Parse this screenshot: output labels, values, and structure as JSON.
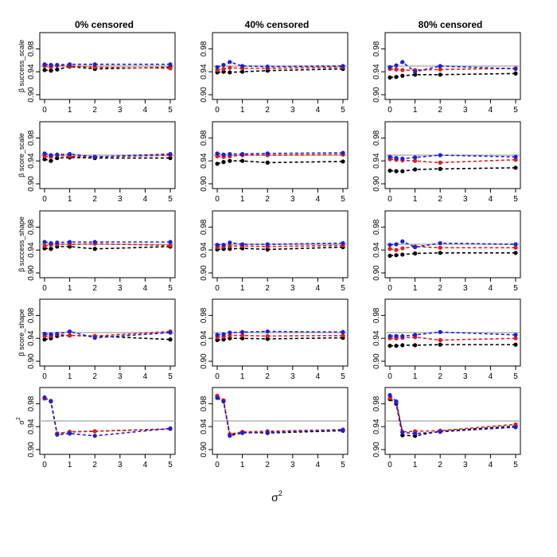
{
  "figure": {
    "column_titles": [
      "0% censored",
      "40% censored",
      "80% censored"
    ],
    "row_labels": [
      {
        "base": "β success_scale",
        "sup": ""
      },
      {
        "base": "β score_scale",
        "sup": ""
      },
      {
        "base": "β success_shape",
        "sup": ""
      },
      {
        "base": "β score_shape",
        "sup": ""
      },
      {
        "base": "σ",
        "sup": "2"
      }
    ],
    "xlabel": {
      "base": "σ",
      "sup": "2"
    }
  },
  "chart_data": {
    "type": "line",
    "x": [
      0,
      0.25,
      0.5,
      1,
      2,
      5
    ],
    "xlim": [
      0,
      5
    ],
    "xticks": [
      "0",
      "1",
      "2",
      "3",
      "4",
      "5"
    ],
    "ylim": [
      0.9,
      1.0
    ],
    "yticks": [
      "0.90",
      "0.94",
      "0.98"
    ],
    "reference_line": 0.95,
    "colors": {
      "black": "#000000",
      "red": "#e41a1c",
      "blue": "#1f1fd6",
      "reference": "#b3b3b3"
    },
    "panels": [
      [
        {
          "black": [
            0.943,
            0.942,
            0.944,
            0.949,
            0.945,
            0.948
          ],
          "red": [
            0.95,
            0.948,
            0.951,
            0.95,
            0.948,
            0.946
          ],
          "blue": [
            0.953,
            0.952,
            0.952,
            0.953,
            0.953,
            0.953
          ]
        },
        {
          "black": [
            0.943,
            0.94,
            0.945,
            0.946,
            0.945,
            0.945
          ],
          "red": [
            0.948,
            0.947,
            0.95,
            0.948,
            0.947,
            0.95
          ],
          "blue": [
            0.953,
            0.95,
            0.951,
            0.952,
            0.947,
            0.952
          ]
        },
        {
          "black": [
            0.943,
            0.942,
            0.946,
            0.946,
            0.942,
            0.946
          ],
          "red": [
            0.947,
            0.949,
            0.95,
            0.95,
            0.951,
            0.948
          ],
          "blue": [
            0.954,
            0.952,
            0.953,
            0.954,
            0.954,
            0.954
          ]
        },
        {
          "black": [
            0.938,
            0.94,
            0.944,
            0.945,
            0.944,
            0.938
          ],
          "red": [
            0.944,
            0.944,
            0.947,
            0.945,
            0.944,
            0.952
          ],
          "blue": [
            0.948,
            0.947,
            0.948,
            0.952,
            0.941,
            0.95
          ]
        },
        {
          "black": [
            0.99,
            0.985,
            0.928,
            0.931,
            0.932,
            0.936
          ],
          "red": [
            0.989,
            0.985,
            0.928,
            0.931,
            0.932,
            0.936
          ],
          "blue": [
            0.991,
            0.984,
            0.926,
            0.928,
            0.924,
            0.937
          ]
        }
      ],
      [
        {
          "black": [
            0.939,
            0.94,
            0.939,
            0.94,
            0.942,
            0.945
          ],
          "red": [
            0.943,
            0.945,
            0.947,
            0.946,
            0.946,
            0.948
          ],
          "blue": [
            0.948,
            0.952,
            0.957,
            0.95,
            0.949,
            0.95
          ]
        },
        {
          "black": [
            0.935,
            0.938,
            0.94,
            0.94,
            0.937,
            0.939
          ],
          "red": [
            0.948,
            0.947,
            0.948,
            0.95,
            0.95,
            0.951
          ],
          "blue": [
            0.953,
            0.951,
            0.952,
            0.952,
            0.953,
            0.954
          ]
        },
        {
          "black": [
            0.941,
            0.942,
            0.942,
            0.943,
            0.941,
            0.945
          ],
          "red": [
            0.945,
            0.946,
            0.947,
            0.947,
            0.946,
            0.948
          ],
          "blue": [
            0.949,
            0.949,
            0.953,
            0.95,
            0.95,
            0.952
          ]
        },
        {
          "black": [
            0.937,
            0.938,
            0.94,
            0.94,
            0.939,
            0.941
          ],
          "red": [
            0.942,
            0.943,
            0.945,
            0.945,
            0.944,
            0.945
          ],
          "blue": [
            0.946,
            0.947,
            0.95,
            0.951,
            0.952,
            0.951
          ]
        },
        {
          "black": [
            0.992,
            0.985,
            0.926,
            0.93,
            0.929,
            0.933
          ],
          "red": [
            0.994,
            0.986,
            0.927,
            0.931,
            0.932,
            0.935
          ],
          "blue": [
            0.99,
            0.984,
            0.924,
            0.929,
            0.93,
            0.934
          ]
        }
      ],
      [
        {
          "black": [
            0.93,
            0.931,
            0.933,
            0.935,
            0.935,
            0.937
          ],
          "red": [
            0.945,
            0.944,
            0.943,
            0.943,
            0.944,
            0.946
          ],
          "blue": [
            0.948,
            0.951,
            0.957,
            0.94,
            0.95,
            0.945
          ]
        },
        {
          "black": [
            0.923,
            0.922,
            0.922,
            0.925,
            0.926,
            0.928
          ],
          "red": [
            0.943,
            0.942,
            0.941,
            0.94,
            0.937,
            0.942
          ],
          "blue": [
            0.947,
            0.945,
            0.944,
            0.946,
            0.95,
            0.947
          ]
        },
        {
          "black": [
            0.93,
            0.931,
            0.932,
            0.934,
            0.935,
            0.935
          ],
          "red": [
            0.942,
            0.94,
            0.943,
            0.946,
            0.944,
            0.944
          ],
          "blue": [
            0.949,
            0.95,
            0.955,
            0.945,
            0.952,
            0.95
          ]
        },
        {
          "black": [
            0.927,
            0.927,
            0.928,
            0.928,
            0.929,
            0.929
          ],
          "red": [
            0.94,
            0.94,
            0.941,
            0.942,
            0.937,
            0.94
          ],
          "blue": [
            0.944,
            0.944,
            0.944,
            0.946,
            0.951,
            0.946
          ]
        },
        {
          "black": [
            0.988,
            0.98,
            0.925,
            0.924,
            0.932,
            0.941
          ],
          "red": [
            0.99,
            0.983,
            0.931,
            0.932,
            0.933,
            0.944
          ],
          "blue": [
            0.995,
            0.984,
            0.93,
            0.928,
            0.931,
            0.939
          ]
        }
      ]
    ]
  }
}
